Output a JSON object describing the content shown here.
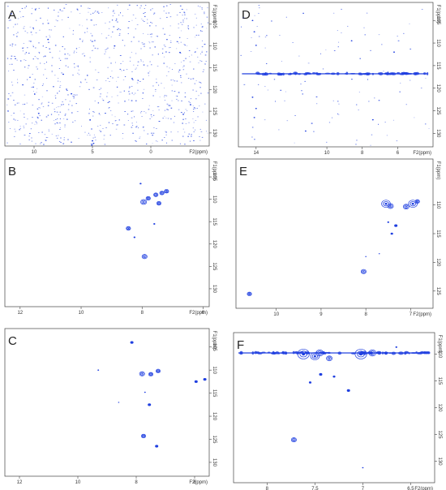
{
  "peak_color": "#1f3fe0",
  "chart_data": [
    {
      "type": "scatter",
      "label": "A",
      "x_axis": {
        "title": "F2(ppm)",
        "ticks": [
          10,
          5,
          0
        ],
        "range": [
          12.5,
          -5
        ]
      },
      "y_axis": {
        "title": "F1(ppm)",
        "ticks": [
          105,
          110,
          115,
          120,
          125,
          130
        ],
        "range": [
          100,
          133
        ]
      },
      "noise_density": "dense",
      "points": [
        {
          "x": 7.5,
          "y": 116.5
        },
        {
          "x": 6.8,
          "y": 121.0
        },
        {
          "x": 3.1,
          "y": 110.0
        },
        {
          "x": 1.6,
          "y": 117.5
        },
        {
          "x": -2.5,
          "y": 111.5
        },
        {
          "x": 5.2,
          "y": 127.0
        },
        {
          "x": 9.6,
          "y": 125.5
        },
        {
          "x": 5.0,
          "y": 131.8
        },
        {
          "x": 4.9,
          "y": 132.4
        },
        {
          "x": 5.05,
          "y": 132.8
        },
        {
          "x": -3.4,
          "y": 123.5
        },
        {
          "x": 8.8,
          "y": 108.5
        }
      ]
    },
    {
      "type": "scatter",
      "label": "D",
      "x_axis": {
        "title": "F2(ppm)",
        "ticks": [
          14,
          10,
          8,
          6
        ],
        "range": [
          15,
          4
        ]
      },
      "y_axis": {
        "title": "F1(ppm)",
        "ticks": [
          105,
          110,
          115,
          120,
          125,
          130
        ],
        "range": [
          101,
          133
        ]
      },
      "noise_density": "sparse",
      "ridge": {
        "y": 116.8,
        "x_from": 14.8,
        "x_to": 4.3
      },
      "points": [
        {
          "x": 14.2,
          "y": 105.0
        },
        {
          "x": 14.1,
          "y": 107.5
        },
        {
          "x": 14.0,
          "y": 110.5
        },
        {
          "x": 14.2,
          "y": 122.0
        },
        {
          "x": 14.0,
          "y": 124.5
        },
        {
          "x": 14.1,
          "y": 126.5
        },
        {
          "x": 8.6,
          "y": 109.5
        },
        {
          "x": 11.2,
          "y": 129.5
        },
        {
          "x": 7.4,
          "y": 127.0
        },
        {
          "x": 6.2,
          "y": 112.0
        }
      ]
    },
    {
      "type": "scatter",
      "label": "B",
      "x_axis": {
        "title": "F2(ppm)",
        "ticks": [
          12,
          10,
          8,
          6
        ],
        "range": [
          12.5,
          5.8
        ]
      },
      "y_axis": {
        "title": "F1(ppm)",
        "ticks": [
          105,
          110,
          115,
          120,
          125,
          130
        ],
        "range": [
          101,
          134
        ]
      },
      "points": [
        {
          "x": 7.95,
          "y": 110.6,
          "size": 4
        },
        {
          "x": 7.8,
          "y": 109.8,
          "size": 3
        },
        {
          "x": 7.55,
          "y": 109.0,
          "size": 3
        },
        {
          "x": 7.35,
          "y": 108.6,
          "size": 3
        },
        {
          "x": 7.2,
          "y": 108.2,
          "size": 3
        },
        {
          "x": 7.45,
          "y": 110.9,
          "size": 3
        },
        {
          "x": 8.05,
          "y": 106.5,
          "size": 1.5
        },
        {
          "x": 8.45,
          "y": 116.5,
          "size": 3
        },
        {
          "x": 8.25,
          "y": 118.5,
          "size": 1.5
        },
        {
          "x": 7.92,
          "y": 122.8,
          "size": 3.5
        },
        {
          "x": 7.6,
          "y": 115.5,
          "size": 1.5
        }
      ]
    },
    {
      "type": "scatter",
      "label": "E",
      "x_axis": {
        "title": "F2(ppm)",
        "ticks": [
          10,
          9,
          8,
          7
        ],
        "range": [
          10.9,
          6.5
        ]
      },
      "y_axis": {
        "title": "F1(ppm)",
        "ticks": [
          110,
          115,
          120,
          125
        ],
        "range": [
          102,
          128
        ]
      },
      "points": [
        {
          "x": 7.55,
          "y": 109.8,
          "size": 6
        },
        {
          "x": 7.45,
          "y": 110.2,
          "size": 4
        },
        {
          "x": 6.95,
          "y": 109.8,
          "size": 6
        },
        {
          "x": 7.1,
          "y": 110.3,
          "size": 4
        },
        {
          "x": 6.85,
          "y": 109.4,
          "size": 3
        },
        {
          "x": 7.33,
          "y": 113.6,
          "size": 2.5
        },
        {
          "x": 7.5,
          "y": 113.0,
          "size": 1.5
        },
        {
          "x": 7.42,
          "y": 115.0,
          "size": 2
        },
        {
          "x": 8.05,
          "y": 121.6,
          "size": 3.5
        },
        {
          "x": 10.6,
          "y": 125.5,
          "size": 3
        },
        {
          "x": 8.0,
          "y": 119.0,
          "size": 1
        },
        {
          "x": 7.7,
          "y": 118.5,
          "size": 1
        }
      ]
    },
    {
      "type": "scatter",
      "label": "C",
      "x_axis": {
        "title": "F2(ppm)",
        "ticks": [
          12,
          10,
          8,
          6
        ],
        "range": [
          12.5,
          5.5
        ]
      },
      "y_axis": {
        "title": "F1(ppm)",
        "ticks": [
          105,
          110,
          115,
          120,
          125,
          130
        ],
        "range": [
          101,
          133
        ]
      },
      "points": [
        {
          "x": 8.15,
          "y": 104.0,
          "size": 2.5
        },
        {
          "x": 7.8,
          "y": 110.8,
          "size": 3.5
        },
        {
          "x": 7.5,
          "y": 110.9,
          "size": 3
        },
        {
          "x": 7.25,
          "y": 110.2,
          "size": 3
        },
        {
          "x": 5.95,
          "y": 112.5,
          "size": 2.5
        },
        {
          "x": 5.65,
          "y": 112.0,
          "size": 2.5
        },
        {
          "x": 7.55,
          "y": 117.5,
          "size": 2.5
        },
        {
          "x": 7.7,
          "y": 114.8,
          "size": 1.2
        },
        {
          "x": 7.75,
          "y": 124.3,
          "size": 3
        },
        {
          "x": 7.3,
          "y": 126.5,
          "size": 2.5
        },
        {
          "x": 9.3,
          "y": 110.0,
          "size": 1.2
        },
        {
          "x": 8.6,
          "y": 117.0,
          "size": 1
        }
      ]
    },
    {
      "type": "scatter",
      "label": "F",
      "x_axis": {
        "title": "F2(ppm)",
        "ticks": [
          "8",
          "7.5",
          "7",
          "6.5"
        ],
        "tick_values": [
          8,
          7.5,
          7,
          6.5
        ],
        "range": [
          8.35,
          6.25
        ]
      },
      "y_axis": {
        "title": "F1(ppm)",
        "ticks": [
          110,
          115,
          120,
          125,
          130
        ],
        "range": [
          106,
          134
        ]
      },
      "ridge": {
        "y": 109.8,
        "x_from": 8.3,
        "x_to": 6.3
      },
      "points": [
        {
          "x": 7.62,
          "y": 110.0,
          "size": 8
        },
        {
          "x": 7.5,
          "y": 110.4,
          "size": 6
        },
        {
          "x": 7.45,
          "y": 109.8,
          "size": 5
        },
        {
          "x": 7.02,
          "y": 110.0,
          "size": 8
        },
        {
          "x": 6.9,
          "y": 109.8,
          "size": 5
        },
        {
          "x": 7.35,
          "y": 110.8,
          "size": 4
        },
        {
          "x": 7.44,
          "y": 113.8,
          "size": 2.5
        },
        {
          "x": 7.3,
          "y": 114.2,
          "size": 2
        },
        {
          "x": 7.55,
          "y": 115.3,
          "size": 2
        },
        {
          "x": 7.15,
          "y": 116.8,
          "size": 2.5
        },
        {
          "x": 7.72,
          "y": 126.0,
          "size": 3.5
        },
        {
          "x": 7.0,
          "y": 131.2,
          "size": 1.2
        },
        {
          "x": 6.65,
          "y": 108.7,
          "size": 1.5
        }
      ]
    }
  ]
}
